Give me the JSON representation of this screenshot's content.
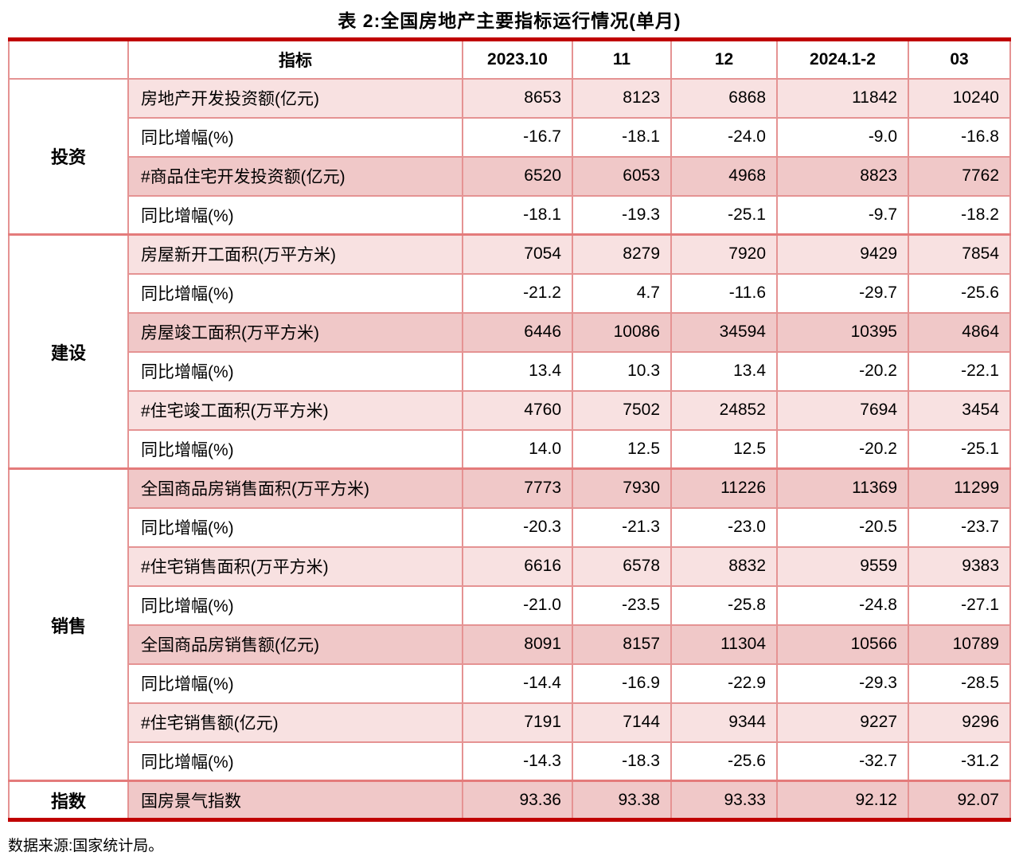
{
  "title": "表 2:全国房地产主要指标运行情况(单月)",
  "footer": "数据来源:国家统计局。",
  "colors": {
    "heavy_rule": "#c00000",
    "section_rule": "#e47b7b",
    "cell_border": "#e59393",
    "row_light_pink": "#f8e1e1",
    "row_dark_pink": "#f0c8c8",
    "row_white": "#ffffff",
    "text": "#000000"
  },
  "table": {
    "header": [
      "指标",
      "2023.10",
      "11",
      "12",
      "2024.1-2",
      "03"
    ],
    "sections": [
      {
        "group": "投资",
        "rows": [
          {
            "label": "房地产开发投资额(亿元)",
            "tone": "light",
            "values": [
              "8653",
              "8123",
              "6868",
              "11842",
              "10240"
            ]
          },
          {
            "label": "同比增幅(%)",
            "tone": "white",
            "values": [
              "-16.7",
              "-18.1",
              "-24.0",
              "-9.0",
              "-16.8"
            ]
          },
          {
            "label": "#商品住宅开发投资额(亿元)",
            "tone": "dark",
            "values": [
              "6520",
              "6053",
              "4968",
              "8823",
              "7762"
            ]
          },
          {
            "label": "同比增幅(%)",
            "tone": "white",
            "values": [
              "-18.1",
              "-19.3",
              "-25.1",
              "-9.7",
              "-18.2"
            ]
          }
        ]
      },
      {
        "group": "建设",
        "rows": [
          {
            "label": "房屋新开工面积(万平方米)",
            "tone": "light",
            "values": [
              "7054",
              "8279",
              "7920",
              "9429",
              "7854"
            ]
          },
          {
            "label": "同比增幅(%)",
            "tone": "white",
            "values": [
              "-21.2",
              "4.7",
              "-11.6",
              "-29.7",
              "-25.6"
            ]
          },
          {
            "label": "房屋竣工面积(万平方米)",
            "tone": "dark",
            "values": [
              "6446",
              "10086",
              "34594",
              "10395",
              "4864"
            ]
          },
          {
            "label": "同比增幅(%)",
            "tone": "white",
            "values": [
              "13.4",
              "10.3",
              "13.4",
              "-20.2",
              "-22.1"
            ]
          },
          {
            "label": "#住宅竣工面积(万平方米)",
            "tone": "light",
            "values": [
              "4760",
              "7502",
              "24852",
              "7694",
              "3454"
            ]
          },
          {
            "label": "同比增幅(%)",
            "tone": "white",
            "values": [
              "14.0",
              "12.5",
              "12.5",
              "-20.2",
              "-25.1"
            ]
          }
        ]
      },
      {
        "group": "销售",
        "rows": [
          {
            "label": "全国商品房销售面积(万平方米)",
            "tone": "dark",
            "values": [
              "7773",
              "7930",
              "11226",
              "11369",
              "11299"
            ]
          },
          {
            "label": "同比增幅(%)",
            "tone": "white",
            "values": [
              "-20.3",
              "-21.3",
              "-23.0",
              "-20.5",
              "-23.7"
            ]
          },
          {
            "label": "#住宅销售面积(万平方米)",
            "tone": "light",
            "values": [
              "6616",
              "6578",
              "8832",
              "9559",
              "9383"
            ]
          },
          {
            "label": "同比增幅(%)",
            "tone": "white",
            "values": [
              "-21.0",
              "-23.5",
              "-25.8",
              "-24.8",
              "-27.1"
            ]
          },
          {
            "label": "全国商品房销售额(亿元)",
            "tone": "dark",
            "values": [
              "8091",
              "8157",
              "11304",
              "10566",
              "10789"
            ]
          },
          {
            "label": "同比增幅(%)",
            "tone": "white",
            "values": [
              "-14.4",
              "-16.9",
              "-22.9",
              "-29.3",
              "-28.5"
            ]
          },
          {
            "label": "#住宅销售额(亿元)",
            "tone": "light",
            "values": [
              "7191",
              "7144",
              "9344",
              "9227",
              "9296"
            ]
          },
          {
            "label": "同比增幅(%)",
            "tone": "white",
            "values": [
              "-14.3",
              "-18.3",
              "-25.6",
              "-32.7",
              "-31.2"
            ]
          }
        ]
      },
      {
        "group": "指数",
        "rows": [
          {
            "label": "国房景气指数",
            "tone": "dark",
            "values": [
              "93.36",
              "93.38",
              "93.33",
              "92.12",
              "92.07"
            ]
          }
        ]
      }
    ]
  }
}
